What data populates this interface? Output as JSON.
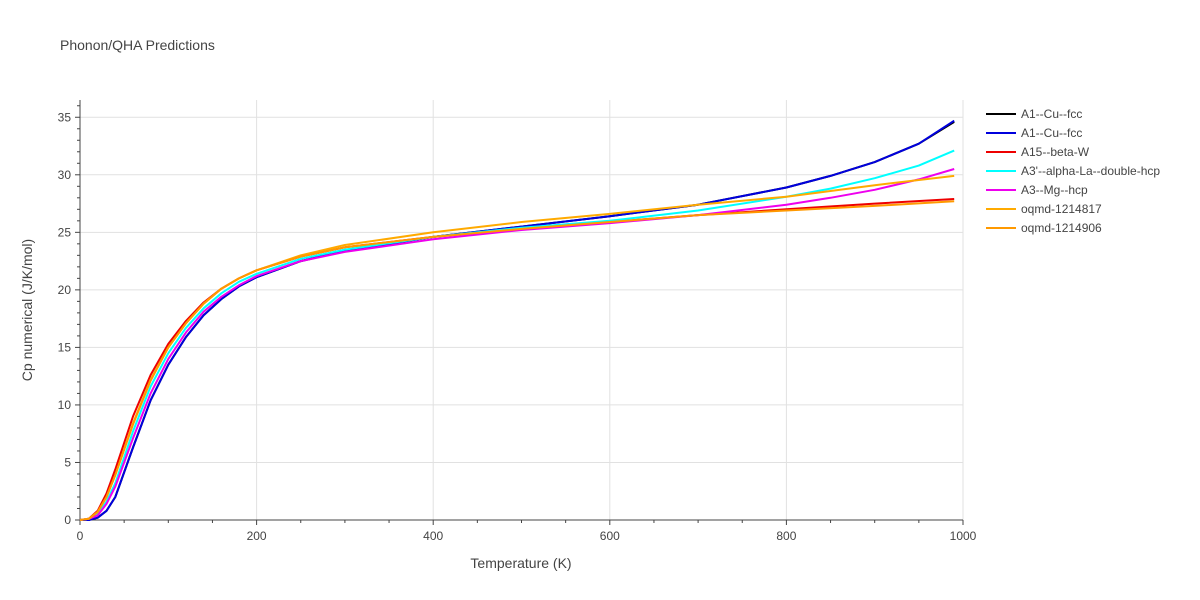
{
  "chart_data": {
    "type": "line",
    "title": "Phonon/QHA Predictions",
    "xlabel": "Temperature (K)",
    "ylabel": "Cp numerical (J/K/mol)",
    "xlim": [
      0,
      1000
    ],
    "ylim": [
      0,
      36.5
    ],
    "xticks": [
      0,
      200,
      400,
      600,
      800,
      1000
    ],
    "yticks": [
      0,
      5,
      10,
      15,
      20,
      25,
      30,
      35
    ],
    "grid": true,
    "legend_position": "right",
    "series": [
      {
        "name": "A1--Cu--fcc",
        "color": "#000000",
        "x": [
          0,
          10,
          20,
          30,
          40,
          60,
          80,
          100,
          120,
          140,
          160,
          180,
          200,
          250,
          300,
          400,
          500,
          600,
          700,
          800,
          850,
          900,
          950,
          990
        ],
        "y": [
          0,
          0,
          0.2,
          0.8,
          2.0,
          6.3,
          10.4,
          13.5,
          15.9,
          17.8,
          19.2,
          20.3,
          21.1,
          22.5,
          23.4,
          24.6,
          25.5,
          26.4,
          27.4,
          28.9,
          29.9,
          31.1,
          32.7,
          34.6
        ]
      },
      {
        "name": "A1--Cu--fcc",
        "color": "#0000dd",
        "x": [
          0,
          10,
          20,
          30,
          40,
          60,
          80,
          100,
          120,
          140,
          160,
          180,
          200,
          250,
          300,
          400,
          500,
          600,
          700,
          800,
          850,
          900,
          950,
          990
        ],
        "y": [
          0,
          0,
          0.2,
          0.8,
          2.0,
          6.3,
          10.4,
          13.5,
          15.9,
          17.8,
          19.2,
          20.3,
          21.1,
          22.5,
          23.4,
          24.6,
          25.5,
          26.4,
          27.4,
          28.9,
          29.9,
          31.1,
          32.7,
          34.7
        ]
      },
      {
        "name": "A15--beta-W",
        "color": "#ee0000",
        "x": [
          0,
          10,
          20,
          30,
          40,
          60,
          80,
          100,
          120,
          140,
          160,
          180,
          200,
          250,
          300,
          400,
          500,
          600,
          700,
          800,
          900,
          990
        ],
        "y": [
          0,
          0.1,
          0.8,
          2.3,
          4.4,
          9.0,
          12.6,
          15.3,
          17.3,
          18.9,
          20.1,
          21.0,
          21.7,
          22.9,
          23.7,
          24.6,
          25.3,
          25.9,
          26.5,
          27.0,
          27.5,
          27.9
        ]
      },
      {
        "name": "A3'--alpha-La--double-hcp",
        "color": "#00ffff",
        "x": [
          0,
          10,
          20,
          30,
          40,
          60,
          80,
          100,
          120,
          140,
          160,
          180,
          200,
          250,
          300,
          400,
          500,
          600,
          700,
          800,
          850,
          900,
          950,
          990
        ],
        "y": [
          0,
          0.1,
          0.5,
          1.6,
          3.2,
          7.7,
          11.6,
          14.5,
          16.7,
          18.4,
          19.7,
          20.7,
          21.4,
          22.7,
          23.5,
          24.6,
          25.4,
          26.0,
          26.9,
          28.1,
          28.8,
          29.7,
          30.8,
          32.1
        ]
      },
      {
        "name": "A3--Mg--hcp",
        "color": "#ee00ee",
        "x": [
          0,
          10,
          20,
          30,
          40,
          60,
          80,
          100,
          120,
          140,
          160,
          180,
          200,
          250,
          300,
          400,
          500,
          600,
          700,
          800,
          850,
          900,
          950,
          990
        ],
        "y": [
          0,
          0.1,
          0.4,
          1.4,
          2.9,
          7.1,
          11.0,
          14.0,
          16.3,
          18.1,
          19.4,
          20.4,
          21.2,
          22.5,
          23.3,
          24.4,
          25.2,
          25.8,
          26.5,
          27.4,
          28.0,
          28.7,
          29.6,
          30.5
        ]
      },
      {
        "name": "oqmd-1214817",
        "color": "#ffaa00",
        "x": [
          0,
          10,
          20,
          30,
          40,
          60,
          80,
          100,
          120,
          140,
          160,
          180,
          200,
          250,
          300,
          400,
          500,
          600,
          700,
          800,
          900,
          990
        ],
        "y": [
          0,
          0.1,
          0.7,
          2.0,
          3.9,
          8.4,
          12.2,
          15.0,
          17.1,
          18.8,
          20.1,
          21.0,
          21.7,
          23.0,
          23.9,
          25.0,
          25.9,
          26.6,
          27.4,
          28.1,
          29.1,
          29.9
        ]
      },
      {
        "name": "oqmd-1214906",
        "color": "#ff9900",
        "x": [
          0,
          10,
          20,
          30,
          40,
          60,
          80,
          100,
          120,
          140,
          160,
          180,
          200,
          250,
          300,
          400,
          500,
          600,
          700,
          800,
          900,
          990
        ],
        "y": [
          0,
          0.1,
          0.7,
          2.0,
          3.9,
          8.3,
          12.1,
          15.0,
          17.1,
          18.8,
          20.1,
          21.0,
          21.7,
          22.9,
          23.7,
          24.6,
          25.3,
          25.9,
          26.5,
          26.9,
          27.3,
          27.7
        ]
      }
    ]
  }
}
